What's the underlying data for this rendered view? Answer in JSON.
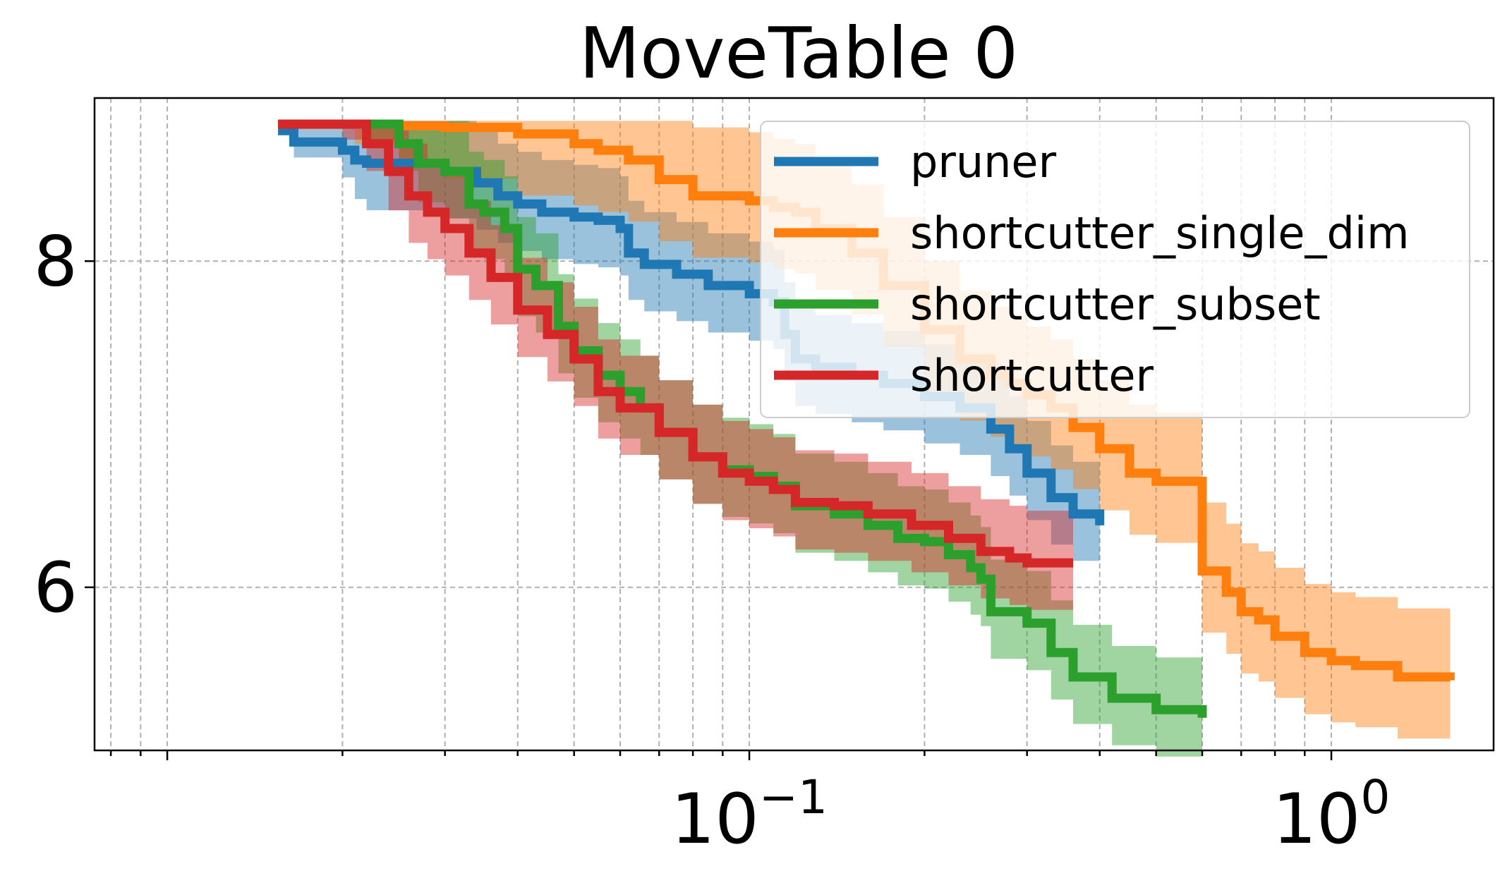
{
  "chart_data": {
    "type": "line",
    "title": "MoveTable 0",
    "xlabel": "",
    "ylabel": "",
    "xscale": "log",
    "xlim": [
      0.0075,
      1.9
    ],
    "ylim": [
      5.0,
      9.0
    ],
    "grid": true,
    "legend_position": "top-right",
    "x_ticks": [
      {
        "value": 0.1,
        "base": "10",
        "exp": "−1"
      },
      {
        "value": 1,
        "base": "10",
        "exp": "0"
      }
    ],
    "y_ticks": [
      {
        "value": 6,
        "label": "6"
      },
      {
        "value": 8,
        "label": "8"
      }
    ],
    "series": [
      {
        "name": "pruner",
        "color": "#1f77b4",
        "x": [
          0.0155,
          0.0165,
          0.02,
          0.021,
          0.022,
          0.023,
          0.025,
          0.03,
          0.034,
          0.037,
          0.04,
          0.044,
          0.05,
          0.055,
          0.06,
          0.062,
          0.066,
          0.075,
          0.085,
          0.1,
          0.11,
          0.115,
          0.12,
          0.13,
          0.15,
          0.17,
          0.2,
          0.23,
          0.26,
          0.28,
          0.3,
          0.33,
          0.36,
          0.4
        ],
        "y": [
          8.8,
          8.73,
          8.68,
          8.62,
          8.6,
          8.6,
          8.6,
          8.55,
          8.48,
          8.4,
          8.35,
          8.3,
          8.27,
          8.25,
          8.2,
          8.05,
          7.98,
          7.92,
          7.85,
          7.8,
          7.75,
          7.55,
          7.4,
          7.35,
          7.3,
          7.25,
          7.17,
          7.1,
          6.97,
          6.85,
          6.7,
          6.55,
          6.45,
          6.38
        ]
      },
      {
        "name": "shortcutter_single_dim",
        "color": "#ff7f0e",
        "x": [
          0.0155,
          0.021,
          0.025,
          0.03,
          0.04,
          0.05,
          0.055,
          0.062,
          0.07,
          0.08,
          0.1,
          0.11,
          0.12,
          0.13,
          0.15,
          0.17,
          0.2,
          0.23,
          0.26,
          0.28,
          0.3,
          0.33,
          0.36,
          0.4,
          0.45,
          0.5,
          0.55,
          0.6,
          0.66,
          0.7,
          0.75,
          0.8,
          0.9,
          1.0,
          1.1,
          1.3,
          1.6
        ],
        "y": [
          8.84,
          8.84,
          8.83,
          8.82,
          8.78,
          8.72,
          8.68,
          8.62,
          8.5,
          8.4,
          8.37,
          8.33,
          8.3,
          8.2,
          8.05,
          7.85,
          7.58,
          7.4,
          7.3,
          7.25,
          7.18,
          7.1,
          6.98,
          6.85,
          6.7,
          6.65,
          6.65,
          6.1,
          5.97,
          5.85,
          5.8,
          5.7,
          5.6,
          5.55,
          5.52,
          5.45,
          5.43
        ]
      },
      {
        "name": "shortcutter_subset",
        "color": "#2ca02c",
        "x": [
          0.0155,
          0.022,
          0.025,
          0.027,
          0.03,
          0.033,
          0.035,
          0.038,
          0.04,
          0.043,
          0.047,
          0.05,
          0.055,
          0.06,
          0.065,
          0.07,
          0.08,
          0.09,
          0.1,
          0.11,
          0.12,
          0.14,
          0.16,
          0.18,
          0.2,
          0.22,
          0.24,
          0.25,
          0.26,
          0.3,
          0.33,
          0.36,
          0.42,
          0.5,
          0.6
        ],
        "y": [
          8.84,
          8.84,
          8.72,
          8.6,
          8.55,
          8.35,
          8.3,
          8.2,
          7.95,
          7.85,
          7.6,
          7.45,
          7.3,
          7.2,
          7.1,
          6.95,
          6.8,
          6.72,
          6.68,
          6.62,
          6.5,
          6.45,
          6.38,
          6.3,
          6.28,
          6.2,
          6.12,
          6.05,
          5.85,
          5.78,
          5.6,
          5.45,
          5.32,
          5.25,
          5.2
        ]
      },
      {
        "name": "shortcutter",
        "color": "#d62728",
        "x": [
          0.0155,
          0.02,
          0.022,
          0.024,
          0.026,
          0.028,
          0.03,
          0.033,
          0.036,
          0.04,
          0.045,
          0.05,
          0.055,
          0.06,
          0.07,
          0.08,
          0.09,
          0.1,
          0.11,
          0.12,
          0.14,
          0.16,
          0.19,
          0.22,
          0.25,
          0.28,
          0.3,
          0.33,
          0.36
        ],
        "y": [
          8.84,
          8.84,
          8.72,
          8.55,
          8.4,
          8.3,
          8.2,
          8.05,
          7.9,
          7.7,
          7.55,
          7.4,
          7.2,
          7.1,
          6.95,
          6.8,
          6.7,
          6.65,
          6.6,
          6.52,
          6.5,
          6.45,
          6.38,
          6.3,
          6.22,
          6.18,
          6.15,
          6.15,
          6.15
        ]
      }
    ]
  }
}
